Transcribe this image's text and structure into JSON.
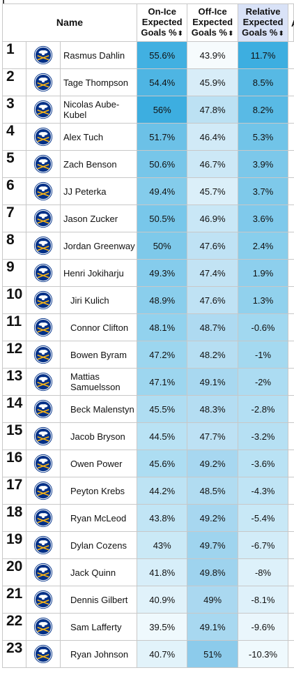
{
  "header": {
    "name": "Name",
    "on_ice": [
      "On-Ice",
      "Expected",
      "Goals %"
    ],
    "off_ice": [
      "Off-Ice",
      "Expected",
      "Goals %"
    ],
    "relative": [
      "Relative",
      "Expected",
      "Goals %"
    ],
    "sort_glyph": "⬍",
    "next_col_fragment": "A"
  },
  "colors": {
    "on_ice_high": "#3daee0",
    "off_ice_high": "#8ccbeb",
    "relative_high": "#3daee0",
    "low": "#ffffff",
    "team_navy": "#003087",
    "team_gold": "#fcb514"
  },
  "team_logo_icon": "buffalo-sabres-logo",
  "rows": [
    {
      "rank": "1",
      "name": "Rasmus Dahlin",
      "on_ice": "55.6%",
      "off_ice": "43.9%",
      "relative": "11.7%"
    },
    {
      "rank": "2",
      "name": "Tage Thompson",
      "on_ice": "54.4%",
      "off_ice": "45.9%",
      "relative": "8.5%"
    },
    {
      "rank": "3",
      "name": "Nicolas Aube-Kubel",
      "on_ice": "56%",
      "off_ice": "47.8%",
      "relative": "8.2%"
    },
    {
      "rank": "4",
      "name": "Alex Tuch",
      "on_ice": "51.7%",
      "off_ice": "46.4%",
      "relative": "5.3%"
    },
    {
      "rank": "5",
      "name": "Zach Benson",
      "on_ice": "50.6%",
      "off_ice": "46.7%",
      "relative": "3.9%"
    },
    {
      "rank": "6",
      "name": "JJ Peterka",
      "on_ice": "49.4%",
      "off_ice": "45.7%",
      "relative": "3.7%"
    },
    {
      "rank": "7",
      "name": "Jason Zucker",
      "on_ice": "50.5%",
      "off_ice": "46.9%",
      "relative": "3.6%"
    },
    {
      "rank": "8",
      "name": "Jordan Greenway",
      "on_ice": "50%",
      "off_ice": "47.6%",
      "relative": "2.4%"
    },
    {
      "rank": "9",
      "name": "Henri Jokiharju",
      "on_ice": "49.3%",
      "off_ice": "47.4%",
      "relative": "1.9%"
    },
    {
      "rank": "10",
      "name": "Jiri Kulich",
      "on_ice": "48.9%",
      "off_ice": "47.6%",
      "relative": "1.3%"
    },
    {
      "rank": "11",
      "name": "Connor Clifton",
      "on_ice": "48.1%",
      "off_ice": "48.7%",
      "relative": "-0.6%"
    },
    {
      "rank": "12",
      "name": "Bowen Byram",
      "on_ice": "47.2%",
      "off_ice": "48.2%",
      "relative": "-1%"
    },
    {
      "rank": "13",
      "name": "Mattias Samuelsson",
      "on_ice": "47.1%",
      "off_ice": "49.1%",
      "relative": "-2%"
    },
    {
      "rank": "14",
      "name": "Beck Malenstyn",
      "on_ice": "45.5%",
      "off_ice": "48.3%",
      "relative": "-2.8%"
    },
    {
      "rank": "15",
      "name": "Jacob Bryson",
      "on_ice": "44.5%",
      "off_ice": "47.7%",
      "relative": "-3.2%"
    },
    {
      "rank": "16",
      "name": "Owen Power",
      "on_ice": "45.6%",
      "off_ice": "49.2%",
      "relative": "-3.6%"
    },
    {
      "rank": "17",
      "name": "Peyton Krebs",
      "on_ice": "44.2%",
      "off_ice": "48.5%",
      "relative": "-4.3%"
    },
    {
      "rank": "18",
      "name": "Ryan McLeod",
      "on_ice": "43.8%",
      "off_ice": "49.2%",
      "relative": "-5.4%"
    },
    {
      "rank": "19",
      "name": "Dylan Cozens",
      "on_ice": "43%",
      "off_ice": "49.7%",
      "relative": "-6.7%"
    },
    {
      "rank": "20",
      "name": "Jack Quinn",
      "on_ice": "41.8%",
      "off_ice": "49.8%",
      "relative": "-8%"
    },
    {
      "rank": "21",
      "name": "Dennis Gilbert",
      "on_ice": "40.9%",
      "off_ice": "49%",
      "relative": "-8.1%"
    },
    {
      "rank": "22",
      "name": "Sam Lafferty",
      "on_ice": "39.5%",
      "off_ice": "49.1%",
      "relative": "-9.6%"
    },
    {
      "rank": "23",
      "name": "Ryan Johnson",
      "on_ice": "40.7%",
      "off_ice": "51%",
      "relative": "-10.3%"
    }
  ]
}
